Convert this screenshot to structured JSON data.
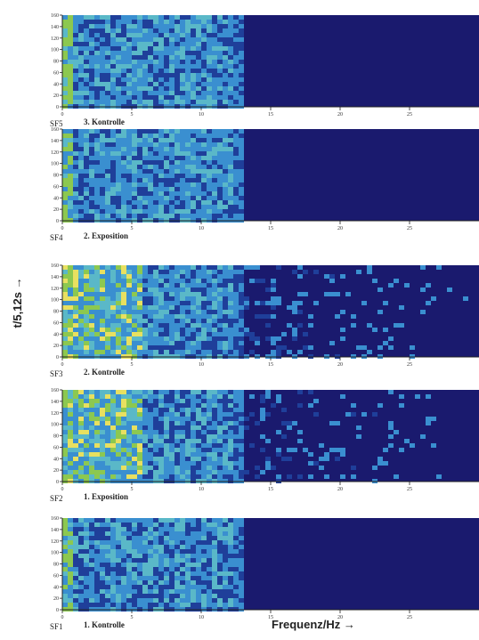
{
  "axis_labels": {
    "y": "t/5,12s →",
    "x": "Frequenz/Hz →"
  },
  "chart_data": [
    {
      "type": "heatmap",
      "panel": "SF5",
      "title": "3. Kontrolle",
      "xlabel": "Frequenz/Hz",
      "ylabel": "t/5,12s",
      "x_ticks": [
        "0",
        "5",
        "10",
        "15",
        "20",
        "25"
      ],
      "y_ticks": [
        "0",
        "20",
        "40",
        "60",
        "80",
        "100",
        "120",
        "140",
        "160"
      ],
      "activity_cutoff_hz": 12.5,
      "sparse_above_cutoff": false,
      "strong_activity": false
    },
    {
      "type": "heatmap",
      "panel": "SF4",
      "title": "2. Exposition",
      "xlabel": "Frequenz/Hz",
      "ylabel": "t/5,12s",
      "x_ticks": [
        "0",
        "5",
        "10",
        "15",
        "20",
        "25"
      ],
      "y_ticks": [
        "0",
        "20",
        "40",
        "60",
        "80",
        "100",
        "120",
        "140",
        "160"
      ],
      "activity_cutoff_hz": 12.5,
      "sparse_above_cutoff": false,
      "strong_activity": false
    },
    {
      "type": "heatmap",
      "panel": "SF3",
      "title": "2. Kontrolle",
      "xlabel": "Frequenz/Hz",
      "ylabel": "t/5,12s",
      "x_ticks": [
        "0",
        "5",
        "10",
        "15",
        "20",
        "25"
      ],
      "y_ticks": [
        "0",
        "20",
        "40",
        "60",
        "80",
        "100",
        "120",
        "140",
        "160"
      ],
      "activity_cutoff_hz": 12.5,
      "sparse_above_cutoff": true,
      "strong_activity": true
    },
    {
      "type": "heatmap",
      "panel": "SF2",
      "title": "1. Exposition",
      "xlabel": "Frequenz/Hz",
      "ylabel": "t/5,12s",
      "x_ticks": [
        "0",
        "5",
        "10",
        "15",
        "20",
        "25"
      ],
      "y_ticks": [
        "0",
        "20",
        "40",
        "60",
        "80",
        "100",
        "120",
        "140",
        "160"
      ],
      "activity_cutoff_hz": 12.5,
      "sparse_above_cutoff": true,
      "strong_activity": true
    },
    {
      "type": "heatmap",
      "panel": "SF1",
      "title": "1. Kontrolle",
      "xlabel": "Frequenz/Hz",
      "ylabel": "t/5,12s",
      "x_ticks": [
        "0",
        "5",
        "10",
        "15",
        "20",
        "25"
      ],
      "y_ticks": [
        "0",
        "20",
        "40",
        "60",
        "80",
        "100",
        "120",
        "140",
        "160"
      ],
      "activity_cutoff_hz": 12.5,
      "sparse_above_cutoff": false,
      "strong_activity": false
    }
  ],
  "colors": {
    "background": "#1a1a6e",
    "low": "#1f3f9a",
    "mid": "#3a8fd0",
    "high": "#5ab8c8",
    "peak_green": "#8cc850",
    "peak_yellow": "#e8e060"
  }
}
